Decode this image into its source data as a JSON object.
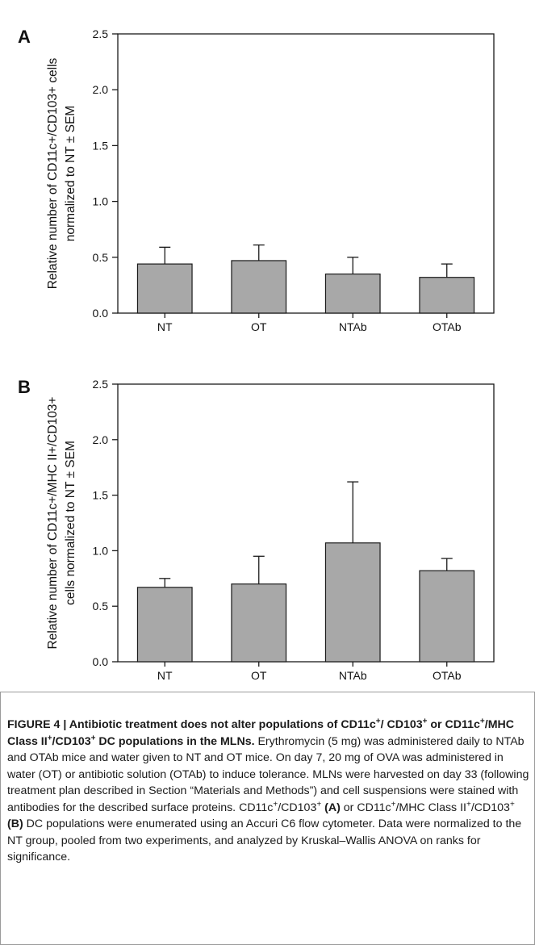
{
  "colors": {
    "bar": "#a8a8a8",
    "bar_edge": "#1a1a1a",
    "axis": "#1a1a1a",
    "text": "#111111"
  },
  "panels": [
    {
      "label": "A",
      "ylabel_line1": "Relative number of CD11c+/CD103+ cells",
      "ylabel_line2": "normalized to NT ± SEM"
    },
    {
      "label": "B",
      "ylabel_line1": "Relative number of CD11c+/MHC II+/CD103+",
      "ylabel_line2": "cells normalized to NT ± SEM"
    }
  ],
  "chart_data": [
    {
      "type": "bar",
      "title": "",
      "categories": [
        "NT",
        "OT",
        "NTAb",
        "OTAb"
      ],
      "values": [
        0.44,
        0.47,
        0.35,
        0.32
      ],
      "error_plus": [
        0.15,
        0.14,
        0.15,
        0.12
      ],
      "ylim": [
        0,
        2.5
      ],
      "yticks": [
        0.0,
        0.5,
        1.0,
        1.5,
        2.0,
        2.5
      ],
      "ytick_labels": [
        "0.0",
        "0.5",
        "1.0",
        "1.5",
        "2.0",
        "2.5"
      ],
      "ylabel": "Relative number of CD11c+/CD103+ cells normalized to NT ± SEM",
      "xlabel": "",
      "grid": false
    },
    {
      "type": "bar",
      "title": "",
      "categories": [
        "NT",
        "OT",
        "NTAb",
        "OTAb"
      ],
      "values": [
        0.67,
        0.7,
        1.07,
        0.82
      ],
      "error_plus": [
        0.08,
        0.25,
        0.55,
        0.11
      ],
      "ylim": [
        0,
        2.5
      ],
      "yticks": [
        0.0,
        0.5,
        1.0,
        1.5,
        2.0,
        2.5
      ],
      "ytick_labels": [
        "0.0",
        "0.5",
        "1.0",
        "1.5",
        "2.0",
        "2.5"
      ],
      "ylabel": "Relative number of CD11c+/MHC II+/CD103+ cells normalized to NT ± SEM",
      "xlabel": "",
      "grid": false
    }
  ],
  "caption": {
    "fig_label": "FIGURE 4 | ",
    "title_part1": "Antibiotic treatment does not alter populations of CD11c",
    "title_part2": "/ CD103",
    "title_part3": " or CD11c",
    "title_part4": "/MHC Class II",
    "title_part5": "/CD103",
    "title_part6": " DC populations in the MLNs.",
    "sup_plus": "+",
    "body_1": " Erythromycin (5 mg) was administered daily to NTAb and OTAb mice and water given to NT and OT mice. On day 7, 20 mg of OVA was administered in water (OT) or antibiotic solution (OTAb) to induce tolerance. MLNs were harvested on day 33 (following treatment plan described in Section “Materials and Methods”) and cell suspensions were stained with antibodies for the described surface proteins. CD11c",
    "body_2": "/CD103",
    "ref_a": " (A)",
    "body_3": " or CD11c",
    "body_4": "/MHC Class II",
    "body_5": "/CD103",
    "ref_b": " (B)",
    "body_6": " DC populations were enumerated using an Accuri C6 flow cytometer. Data were normalized to the NT group, pooled from two experiments, and analyzed by Kruskal–Wallis ANOVA on ranks for significance."
  }
}
